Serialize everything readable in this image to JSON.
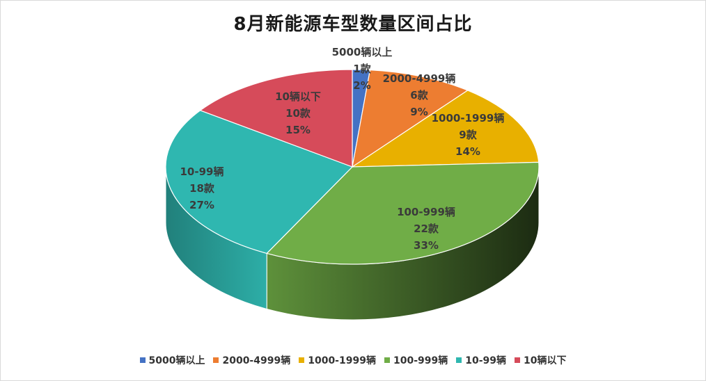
{
  "chart_data": {
    "type": "pie",
    "title": "8月新能源车型数量区间占比",
    "categories": [
      "5000辆以上",
      "2000-4999辆",
      "1000-1999辆",
      "100-999辆",
      "10-99辆",
      "10辆以下"
    ],
    "values": [
      1,
      6,
      9,
      22,
      18,
      10
    ],
    "count_labels": [
      "1款",
      "6款",
      "9款",
      "22款",
      "18款",
      "10款"
    ],
    "percent_labels": [
      "2%",
      "9%",
      "14%",
      "33%",
      "27%",
      "15%"
    ],
    "colors": [
      "#4472C4",
      "#ED7D31",
      "#E8B000",
      "#70AD47",
      "#2FB7B0",
      "#D64B5A"
    ],
    "legend_position": "bottom",
    "style": "3d"
  }
}
